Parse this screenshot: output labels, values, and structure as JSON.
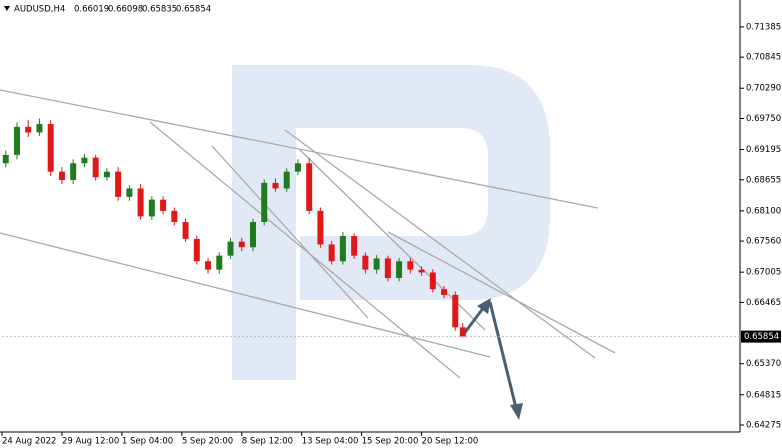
{
  "chart_data": {
    "type": "candlestick",
    "header": {
      "symbol": "AUDUSD,H4",
      "open": 0.66019,
      "high": 0.66098,
      "low": 0.65835,
      "close": 0.65854
    },
    "up_color": "#1e7b1e",
    "down_color": "#e01818",
    "candles": {
      "x": [
        1,
        4,
        7,
        10,
        13,
        16,
        19,
        22,
        25,
        28,
        31,
        34,
        37,
        40,
        43,
        46,
        49,
        52,
        55,
        58,
        61,
        64,
        67,
        70,
        73,
        76,
        79,
        82,
        85,
        88,
        91,
        94,
        97,
        100,
        103,
        106,
        109,
        112,
        115,
        118,
        121,
        123
      ],
      "open": [
        0.6895,
        0.691,
        0.696,
        0.695,
        0.6965,
        0.688,
        0.6865,
        0.6895,
        0.6905,
        0.687,
        0.688,
        0.6835,
        0.685,
        0.68,
        0.683,
        0.681,
        0.679,
        0.676,
        0.672,
        0.6705,
        0.673,
        0.6755,
        0.6745,
        0.679,
        0.686,
        0.685,
        0.688,
        0.6895,
        0.681,
        0.675,
        0.672,
        0.6765,
        0.673,
        0.6705,
        0.6725,
        0.669,
        0.672,
        0.6705,
        0.67,
        0.667,
        0.666,
        0.66019
      ],
      "high": [
        0.6918,
        0.6968,
        0.6972,
        0.6975,
        0.6972,
        0.6888,
        0.6902,
        0.6912,
        0.691,
        0.6886,
        0.6888,
        0.6856,
        0.6858,
        0.6836,
        0.6836,
        0.6816,
        0.6796,
        0.6766,
        0.6726,
        0.6736,
        0.6762,
        0.6762,
        0.6796,
        0.6866,
        0.6868,
        0.6886,
        0.6902,
        0.6905,
        0.6816,
        0.6756,
        0.6772,
        0.677,
        0.6736,
        0.6731,
        0.673,
        0.6726,
        0.6726,
        0.6711,
        0.6706,
        0.6676,
        0.6666,
        0.66098
      ],
      "low": [
        0.6888,
        0.6902,
        0.6942,
        0.6944,
        0.6872,
        0.6858,
        0.6858,
        0.6888,
        0.6864,
        0.6864,
        0.6828,
        0.6828,
        0.6794,
        0.6794,
        0.6804,
        0.6784,
        0.6754,
        0.6714,
        0.6698,
        0.6698,
        0.6724,
        0.6738,
        0.6738,
        0.6784,
        0.6844,
        0.6844,
        0.6874,
        0.6804,
        0.6744,
        0.6714,
        0.6714,
        0.6724,
        0.6698,
        0.6698,
        0.6684,
        0.6684,
        0.6698,
        0.6694,
        0.6664,
        0.6654,
        0.6596,
        0.65835
      ],
      "close": [
        0.691,
        0.696,
        0.695,
        0.6965,
        0.688,
        0.6865,
        0.6895,
        0.6905,
        0.687,
        0.688,
        0.6835,
        0.685,
        0.68,
        0.683,
        0.681,
        0.679,
        0.676,
        0.672,
        0.6705,
        0.673,
        0.6755,
        0.6745,
        0.679,
        0.686,
        0.685,
        0.688,
        0.6895,
        0.681,
        0.675,
        0.672,
        0.6765,
        0.673,
        0.6705,
        0.6725,
        0.669,
        0.672,
        0.6705,
        0.67,
        0.667,
        0.666,
        0.6602,
        0.65854
      ]
    },
    "xlim": [
      0,
      197
    ],
    "xticks": [
      {
        "value": 0,
        "label": "24 Aug 2022"
      },
      {
        "value": 16,
        "label": "29 Aug 12:00"
      },
      {
        "value": 32,
        "label": "1 Sep 04:00"
      },
      {
        "value": 48,
        "label": "5 Sep 20:00"
      },
      {
        "value": 64,
        "label": "8 Sep 12:00"
      },
      {
        "value": 80,
        "label": "13 Sep 04:00"
      },
      {
        "value": 96,
        "label": "15 Sep 20:00"
      },
      {
        "value": 112,
        "label": "20 Sep 12:00"
      }
    ],
    "ylim": [
      0.6415,
      0.71866
    ],
    "yticks": [
      0.71385,
      0.70845,
      {
        "value": 0.7029,
        "label": "0.70290"
      },
      {
        "value": 0.6975,
        "label": "0.69750"
      },
      0.69195,
      0.68655,
      {
        "value": 0.681,
        "label": "0.68100"
      },
      {
        "value": 0.6756,
        "label": "0.67560"
      },
      0.67005,
      0.66465,
      {
        "value": 0.6537,
        "label": "0.65370"
      },
      0.64815,
      0.64275
    ]
  }
}
